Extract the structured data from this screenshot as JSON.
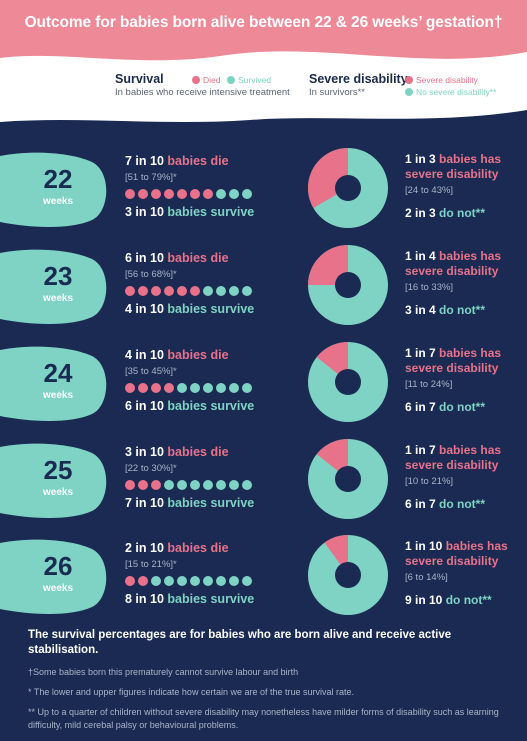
{
  "header": {
    "title": "Outcome for babies born alive between 22 & 26 weeks’ gestation†",
    "bg_color": "#ee8a98"
  },
  "legend": {
    "survival_title": "Survival",
    "survival_sub": "In babies who receive intensive treatment",
    "died_label": "Died",
    "survived_label": "Survived",
    "disability_title": "Severe disability",
    "disability_sub": "In survivors**",
    "severe_label": "Severe disability",
    "no_severe_label": "No severe disability**"
  },
  "colors": {
    "navy": "#1a2a52",
    "pink": "#e8728a",
    "teal": "#7fd3c4"
  },
  "rows": [
    {
      "week": "22",
      "week_label": "weeks",
      "die_count": "7 in 10",
      "die_text": "babies die",
      "range": "[51 to 79%]*",
      "died": 7,
      "survive_count": "3 in 10",
      "survive_text": "babies survive",
      "dis_count": "1 in 3",
      "dis_text_a": "babies has",
      "dis_text_b": "severe disability",
      "dis_range": "[24 to 43%]",
      "donot_count": "2 in 3",
      "donot_text": "do not**"
    },
    {
      "week": "23",
      "week_label": "weeks",
      "die_count": "6 in 10",
      "die_text": "babies die",
      "range": "[56 to 68%]*",
      "died": 6,
      "survive_count": "4 in 10",
      "survive_text": "babies survive",
      "dis_count": "1 in 4",
      "dis_text_a": "babies has",
      "dis_text_b": "severe disability",
      "dis_range": "[16 to 33%]",
      "donot_count": "3 in 4",
      "donot_text": "do not**"
    },
    {
      "week": "24",
      "week_label": "weeks",
      "die_count": "4 in 10",
      "die_text": "babies die",
      "range": "[35 to 45%]*",
      "died": 4,
      "survive_count": "6 in 10",
      "survive_text": "babies survive",
      "dis_count": "1 in 7",
      "dis_text_a": "babies has",
      "dis_text_b": "severe disability",
      "dis_range": "[11 to 24%]",
      "donot_count": "6 in 7",
      "donot_text": "do not**"
    },
    {
      "week": "25",
      "week_label": "weeks",
      "die_count": "3 in 10",
      "die_text": "babies die",
      "range": "[22 to 30%]*",
      "died": 3,
      "survive_count": "7 in 10",
      "survive_text": "babies survive",
      "dis_count": "1 in 7",
      "dis_text_a": "babies has",
      "dis_text_b": "severe disability",
      "dis_range": "[10 to 21%]",
      "donot_count": "6 in 7",
      "donot_text": "do not**"
    },
    {
      "week": "26",
      "week_label": "weeks",
      "die_count": "2 in 10",
      "die_text": "babies die",
      "range": "[15 to 21%]*",
      "died": 2,
      "survive_count": "8 in 10",
      "survive_text": "babies survive",
      "dis_count": "1 in 10",
      "dis_text_a": "babies has",
      "dis_text_b": "severe disability",
      "dis_range": "[6 to 14%]",
      "donot_count": "9 in 10",
      "donot_text": "do not**"
    }
  ],
  "footer": {
    "main": "The survival percentages are for babies who are born alive and receive active stabilisation.",
    "note1": "†Some babies born this prematurely cannot survive labour and birth",
    "note2": "* The lower and upper figures indicate how certain we are of the true survival rate.",
    "note3": "** Up to a quarter of children without severe disability may nonetheless have milder forms of disability such as learning difficulty, mild cerebal palsy or behavioural problems."
  },
  "chart_data": {
    "type": "pie",
    "categories": [
      "22 weeks",
      "23 weeks",
      "24 weeks",
      "25 weeks",
      "26 weeks"
    ],
    "survival": {
      "died_per_10": [
        7,
        6,
        4,
        3,
        2
      ],
      "survived_per_10": [
        3,
        4,
        6,
        7,
        8
      ],
      "died_range": [
        "51 to 79%",
        "56 to 68%",
        "35 to 45%",
        "22 to 30%",
        "15 to 21%"
      ]
    },
    "severe_disability_fraction": [
      0.3333,
      0.25,
      0.1429,
      0.1429,
      0.1
    ],
    "severe_disability_range": [
      "24 to 43%",
      "16 to 33%",
      "11 to 24%",
      "10 to 21%",
      "6 to 14%"
    ],
    "series": [
      {
        "name": "Severe disability",
        "values": [
          0.3333,
          0.25,
          0.1429,
          0.1429,
          0.1
        ]
      },
      {
        "name": "No severe disability**",
        "values": [
          0.6667,
          0.75,
          0.8571,
          0.8571,
          0.9
        ]
      }
    ]
  }
}
